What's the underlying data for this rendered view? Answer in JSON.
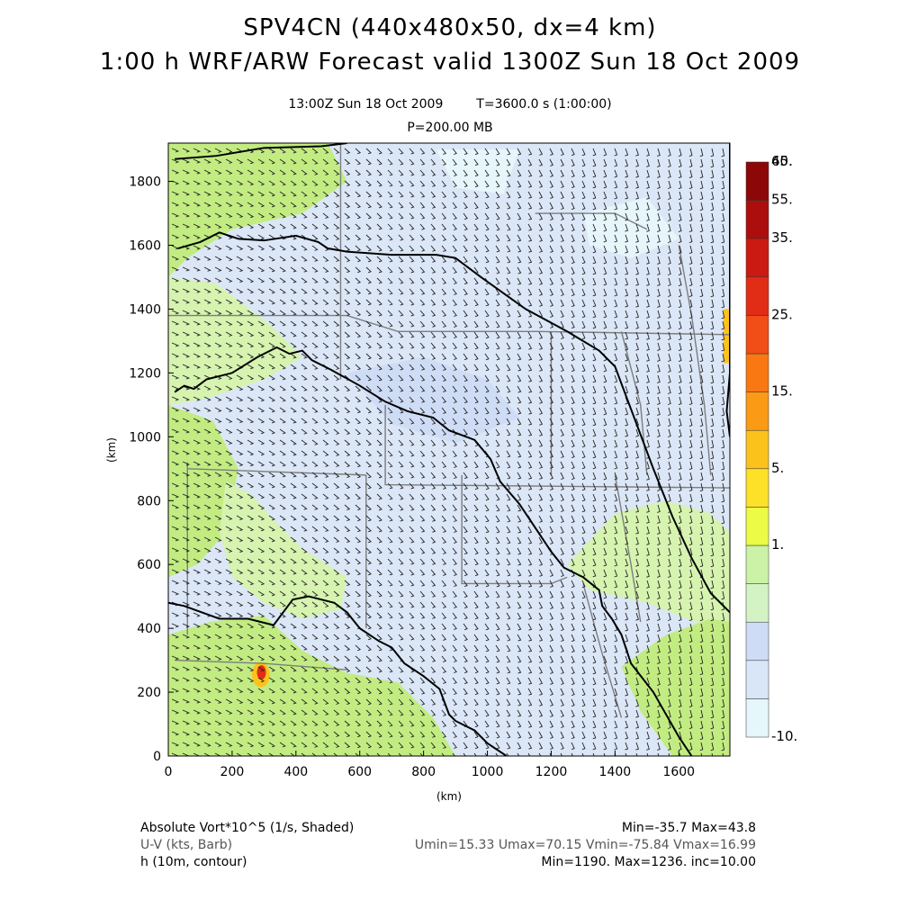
{
  "title": "SPV4CN (440x480x50, dx=4 km)",
  "subtitle": "1:00 h WRF/ARW Forecast valid 1300Z Sun 18 Oct 2009",
  "valid_time": "13:00Z Sun 18 Oct 2009",
  "model_time": "T=3600.0 s (1:00:00)",
  "level": "P=200.00 MB",
  "footer": {
    "field1_label": "Absolute Vort*10^5 (1/s, Shaded)",
    "field1_stats": "Min=-35.7 Max=43.8",
    "field2_label": "U-V (kts, Barb)",
    "field2_stats": "Umin=15.33 Umax=70.15 Vmin=-75.84 Vmax=16.99",
    "field3_label": "h (10m, contour)",
    "field3_stats": "Min=1190. Max=1236. inc=10.00"
  },
  "colors": {
    "shade_neg": "#e6f6fb",
    "shade_low": "#cfdcf5",
    "shade_mid": "#d6f3b0",
    "shade_pos": "#c2ec82",
    "barb": "#222222",
    "contour": "#000000",
    "state_lines": "#7d7d7d"
  },
  "chart_data": {
    "type": "heatmap",
    "xlabel": "(km)",
    "ylabel": "(km)",
    "xlim": [
      0,
      1760
    ],
    "ylim": [
      0,
      1920
    ],
    "x_ticks": [
      "0",
      "200",
      "400",
      "600",
      "800",
      "1000",
      "1200",
      "1400",
      "1600"
    ],
    "y_ticks": [
      "0",
      "200",
      "400",
      "600",
      "800",
      "1000",
      "1200",
      "1400",
      "1600",
      "1800"
    ],
    "colorbar": {
      "labels": [
        "-10.",
        "1.",
        "5.",
        "15.",
        "25.",
        "35.",
        "45.",
        "55.",
        "60."
      ],
      "colors": [
        "#e6f7fb",
        "#d9e6f7",
        "#cfdcf5",
        "#d3f3c4",
        "#cbf2a6",
        "#ebfb46",
        "#fde128",
        "#fcc21c",
        "#fb9a14",
        "#f97812",
        "#f04e16",
        "#e12c16",
        "#ca1a12",
        "#ab0e0c",
        "#8c0808"
      ]
    },
    "fields": [
      {
        "name": "Absolute Vort*10^5 (1/s, Shaded)",
        "min": -35.7,
        "max": 43.8
      },
      {
        "name": "U-V (kts, Barb)",
        "umin": 15.33,
        "umax": 70.15,
        "vmin": -75.84,
        "vmax": 16.99
      },
      {
        "name": "h (10m, contour)",
        "min": 1190,
        "max": 1236,
        "inc": 10
      }
    ],
    "contours": [
      {
        "level": "a",
        "points": [
          [
            20,
            1870
          ],
          [
            150,
            1880
          ],
          [
            300,
            1905
          ],
          [
            480,
            1910
          ],
          [
            560,
            1920
          ]
        ]
      },
      {
        "level": "b",
        "points": [
          [
            30,
            1590
          ],
          [
            100,
            1610
          ],
          [
            160,
            1640
          ],
          [
            220,
            1620
          ],
          [
            300,
            1615
          ],
          [
            400,
            1630
          ],
          [
            470,
            1610
          ],
          [
            500,
            1590
          ],
          [
            560,
            1580
          ],
          [
            700,
            1570
          ],
          [
            840,
            1570
          ],
          [
            900,
            1560
          ],
          [
            980,
            1500
          ],
          [
            1050,
            1450
          ],
          [
            1120,
            1400
          ],
          [
            1250,
            1330
          ],
          [
            1350,
            1270
          ],
          [
            1400,
            1220
          ],
          [
            1460,
            1060
          ],
          [
            1520,
            900
          ],
          [
            1580,
            750
          ],
          [
            1640,
            620
          ],
          [
            1700,
            510
          ],
          [
            1760,
            450
          ]
        ]
      },
      {
        "level": "c",
        "points": [
          [
            20,
            1140
          ],
          [
            50,
            1160
          ],
          [
            80,
            1150
          ],
          [
            120,
            1180
          ],
          [
            200,
            1200
          ],
          [
            280,
            1250
          ],
          [
            340,
            1280
          ],
          [
            380,
            1260
          ],
          [
            420,
            1270
          ],
          [
            450,
            1240
          ],
          [
            510,
            1210
          ],
          [
            600,
            1160
          ],
          [
            680,
            1110
          ],
          [
            750,
            1080
          ],
          [
            830,
            1060
          ],
          [
            880,
            1020
          ],
          [
            960,
            990
          ],
          [
            1010,
            930
          ],
          [
            1040,
            860
          ],
          [
            1100,
            790
          ],
          [
            1160,
            700
          ],
          [
            1200,
            640
          ],
          [
            1240,
            590
          ],
          [
            1300,
            560
          ],
          [
            1350,
            520
          ],
          [
            1360,
            470
          ],
          [
            1390,
            430
          ],
          [
            1420,
            380
          ],
          [
            1450,
            290
          ],
          [
            1520,
            200
          ],
          [
            1560,
            130
          ],
          [
            1600,
            60
          ],
          [
            1640,
            0
          ]
        ]
      },
      {
        "level": "d",
        "points": [
          [
            0,
            480
          ],
          [
            50,
            470
          ],
          [
            160,
            430
          ],
          [
            250,
            430
          ],
          [
            330,
            410
          ],
          [
            390,
            490
          ],
          [
            440,
            500
          ],
          [
            520,
            480
          ],
          [
            560,
            450
          ],
          [
            600,
            400
          ],
          [
            660,
            360
          ],
          [
            700,
            340
          ],
          [
            740,
            290
          ],
          [
            800,
            250
          ],
          [
            850,
            210
          ],
          [
            880,
            130
          ],
          [
            900,
            110
          ],
          [
            960,
            80
          ],
          [
            1000,
            40
          ],
          [
            1060,
            0
          ]
        ]
      },
      {
        "level": "e",
        "points": [
          [
            1760,
            1920
          ],
          [
            1760,
            1200
          ],
          [
            1750,
            1080
          ],
          [
            1760,
            1000
          ]
        ]
      }
    ]
  }
}
